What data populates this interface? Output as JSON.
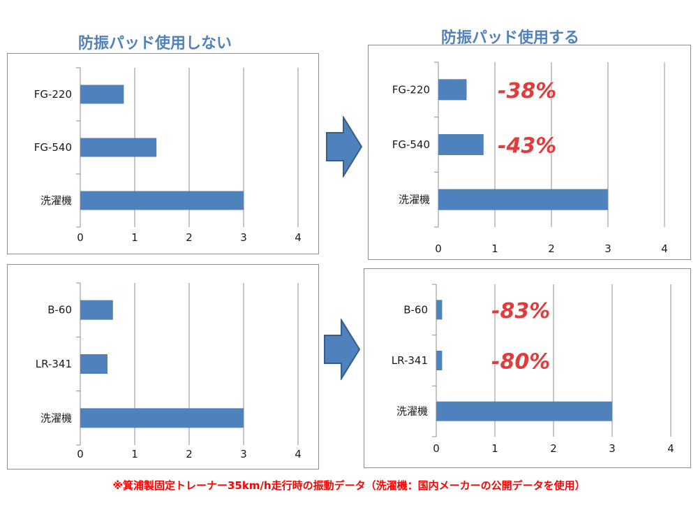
{
  "headings": {
    "left": "防振パッド使用しない",
    "right": "防振パッド使用する"
  },
  "footnote": "※箕浦製固定トレーナー35km/h走行時の振動データ（洗濯機：国内メーカーの公開データを使用）",
  "icons": {
    "arrow_top": "right-arrow-icon",
    "arrow_bottom": "right-arrow-icon"
  },
  "colors": {
    "bar": "#4f81bd",
    "heading": "#4f81bd",
    "percent": "#e23b3b",
    "footnote": "#ff0000"
  },
  "chart_data": [
    {
      "type": "bar",
      "orientation": "horizontal",
      "categories": [
        "FG-220",
        "FG-540",
        "洗濯機"
      ],
      "values": [
        0.8,
        1.4,
        3.0
      ],
      "xlim": [
        0,
        4
      ],
      "xticks": [
        0,
        1,
        2,
        3,
        4
      ],
      "grid": true,
      "legend": "none",
      "annotations": []
    },
    {
      "type": "bar",
      "orientation": "horizontal",
      "categories": [
        "FG-220",
        "FG-540",
        "洗濯機"
      ],
      "values": [
        0.5,
        0.8,
        3.0
      ],
      "xlim": [
        0,
        4
      ],
      "xticks": [
        0,
        1,
        2,
        3,
        4
      ],
      "grid": true,
      "legend": "none",
      "annotations": [
        "-38%",
        "-43%",
        ""
      ]
    },
    {
      "type": "bar",
      "orientation": "horizontal",
      "categories": [
        "B-60",
        "LR-341",
        "洗濯機"
      ],
      "values": [
        0.6,
        0.5,
        3.0
      ],
      "xlim": [
        0,
        4
      ],
      "xticks": [
        0,
        1,
        2,
        3,
        4
      ],
      "grid": true,
      "legend": "none",
      "annotations": []
    },
    {
      "type": "bar",
      "orientation": "horizontal",
      "categories": [
        "B-60",
        "LR-341",
        "洗濯機"
      ],
      "values": [
        0.1,
        0.1,
        3.0
      ],
      "xlim": [
        0,
        4
      ],
      "xticks": [
        0,
        1,
        2,
        3,
        4
      ],
      "grid": true,
      "legend": "none",
      "annotations": [
        "-83%",
        "-80%",
        ""
      ]
    }
  ]
}
